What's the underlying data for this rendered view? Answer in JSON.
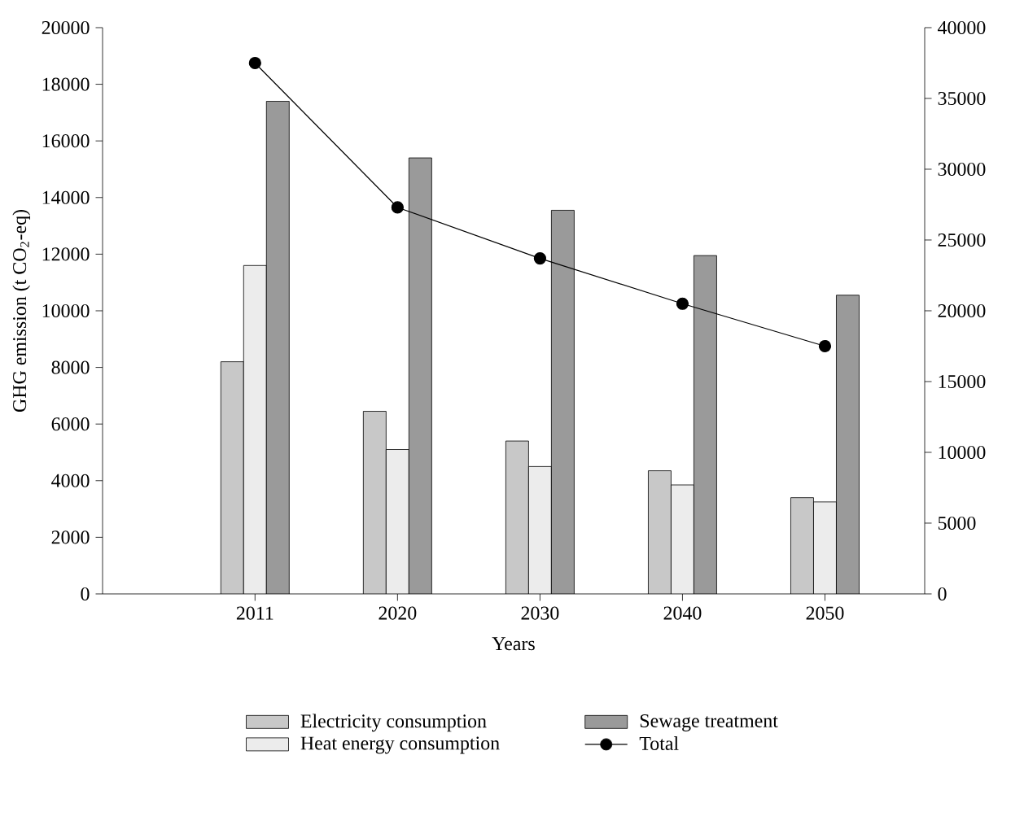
{
  "chart_data": {
    "type": "bar",
    "xlabel": "Years",
    "ylabel": "GHG emission (t CO$_{2}$-eq)",
    "categories": [
      "2011",
      "2020",
      "2030",
      "2040",
      "2050"
    ],
    "series": [
      {
        "name": "Electricity consumption",
        "color": "#c8c8c8",
        "values": [
          8200,
          6450,
          5400,
          4350,
          3400
        ]
      },
      {
        "name": "Heat energy consumption",
        "color": "#ececec",
        "values": [
          11600,
          5100,
          4500,
          3850,
          3250
        ]
      },
      {
        "name": "Sewage treatment",
        "color": "#9a9a9a",
        "values": [
          17400,
          15400,
          13550,
          11950,
          10550
        ]
      },
      {
        "name": "Total",
        "type": "line",
        "axis": "y2",
        "color": "#000000",
        "values": [
          37500,
          27300,
          23700,
          20500,
          17500
        ],
        "marker": "circle",
        "line_style": "solid"
      }
    ],
    "ylim": [
      0,
      20000
    ],
    "yticks": [
      0,
      2000,
      4000,
      6000,
      8000,
      10000,
      12000,
      14000,
      16000,
      18000,
      20000
    ],
    "y2lim": [
      0,
      40000
    ],
    "y2ticks": [
      0,
      5000,
      10000,
      15000,
      20000,
      25000,
      30000,
      35000,
      40000
    ],
    "legend": "bottom",
    "grid": false
  }
}
